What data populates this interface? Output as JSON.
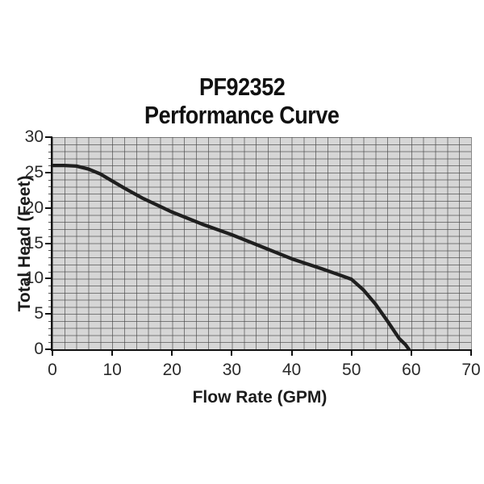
{
  "title": {
    "line1": "PF92352",
    "line2": "Performance Curve"
  },
  "chart_data": {
    "type": "line",
    "title": "PF92352 Performance Curve",
    "xlabel": "Flow Rate (GPM)",
    "ylabel": "Total Head (Feet)",
    "xlim": [
      0,
      70
    ],
    "ylim": [
      0,
      30
    ],
    "x_ticks": [
      0,
      10,
      20,
      30,
      40,
      50,
      60,
      70
    ],
    "y_ticks": [
      0,
      5,
      10,
      15,
      20,
      25,
      30
    ],
    "grid": true,
    "minor_grid_x_step_gpm": 2,
    "minor_grid_y_step_feet": 1,
    "legend": "none",
    "series": [
      {
        "name": "performance-curve",
        "points": [
          [
            0,
            26.0
          ],
          [
            2,
            26.0
          ],
          [
            4,
            25.9
          ],
          [
            6,
            25.5
          ],
          [
            8,
            24.8
          ],
          [
            10,
            23.8
          ],
          [
            12,
            22.8
          ],
          [
            15,
            21.4
          ],
          [
            18,
            20.2
          ],
          [
            20,
            19.4
          ],
          [
            25,
            17.7
          ],
          [
            30,
            16.2
          ],
          [
            35,
            14.5
          ],
          [
            40,
            12.8
          ],
          [
            45,
            11.4
          ],
          [
            48,
            10.5
          ],
          [
            50,
            9.9
          ],
          [
            52,
            8.4
          ],
          [
            54,
            6.4
          ],
          [
            56,
            4.0
          ],
          [
            58,
            1.5
          ],
          [
            59,
            0.7
          ],
          [
            59.6,
            0.0
          ]
        ]
      }
    ],
    "colors": {
      "plot_background": "#d6d6d6",
      "grid_line": "#6f6f6f",
      "curve": "#1f1f1f",
      "axis": "#111111",
      "tick_label": "#2a2a2a"
    }
  }
}
